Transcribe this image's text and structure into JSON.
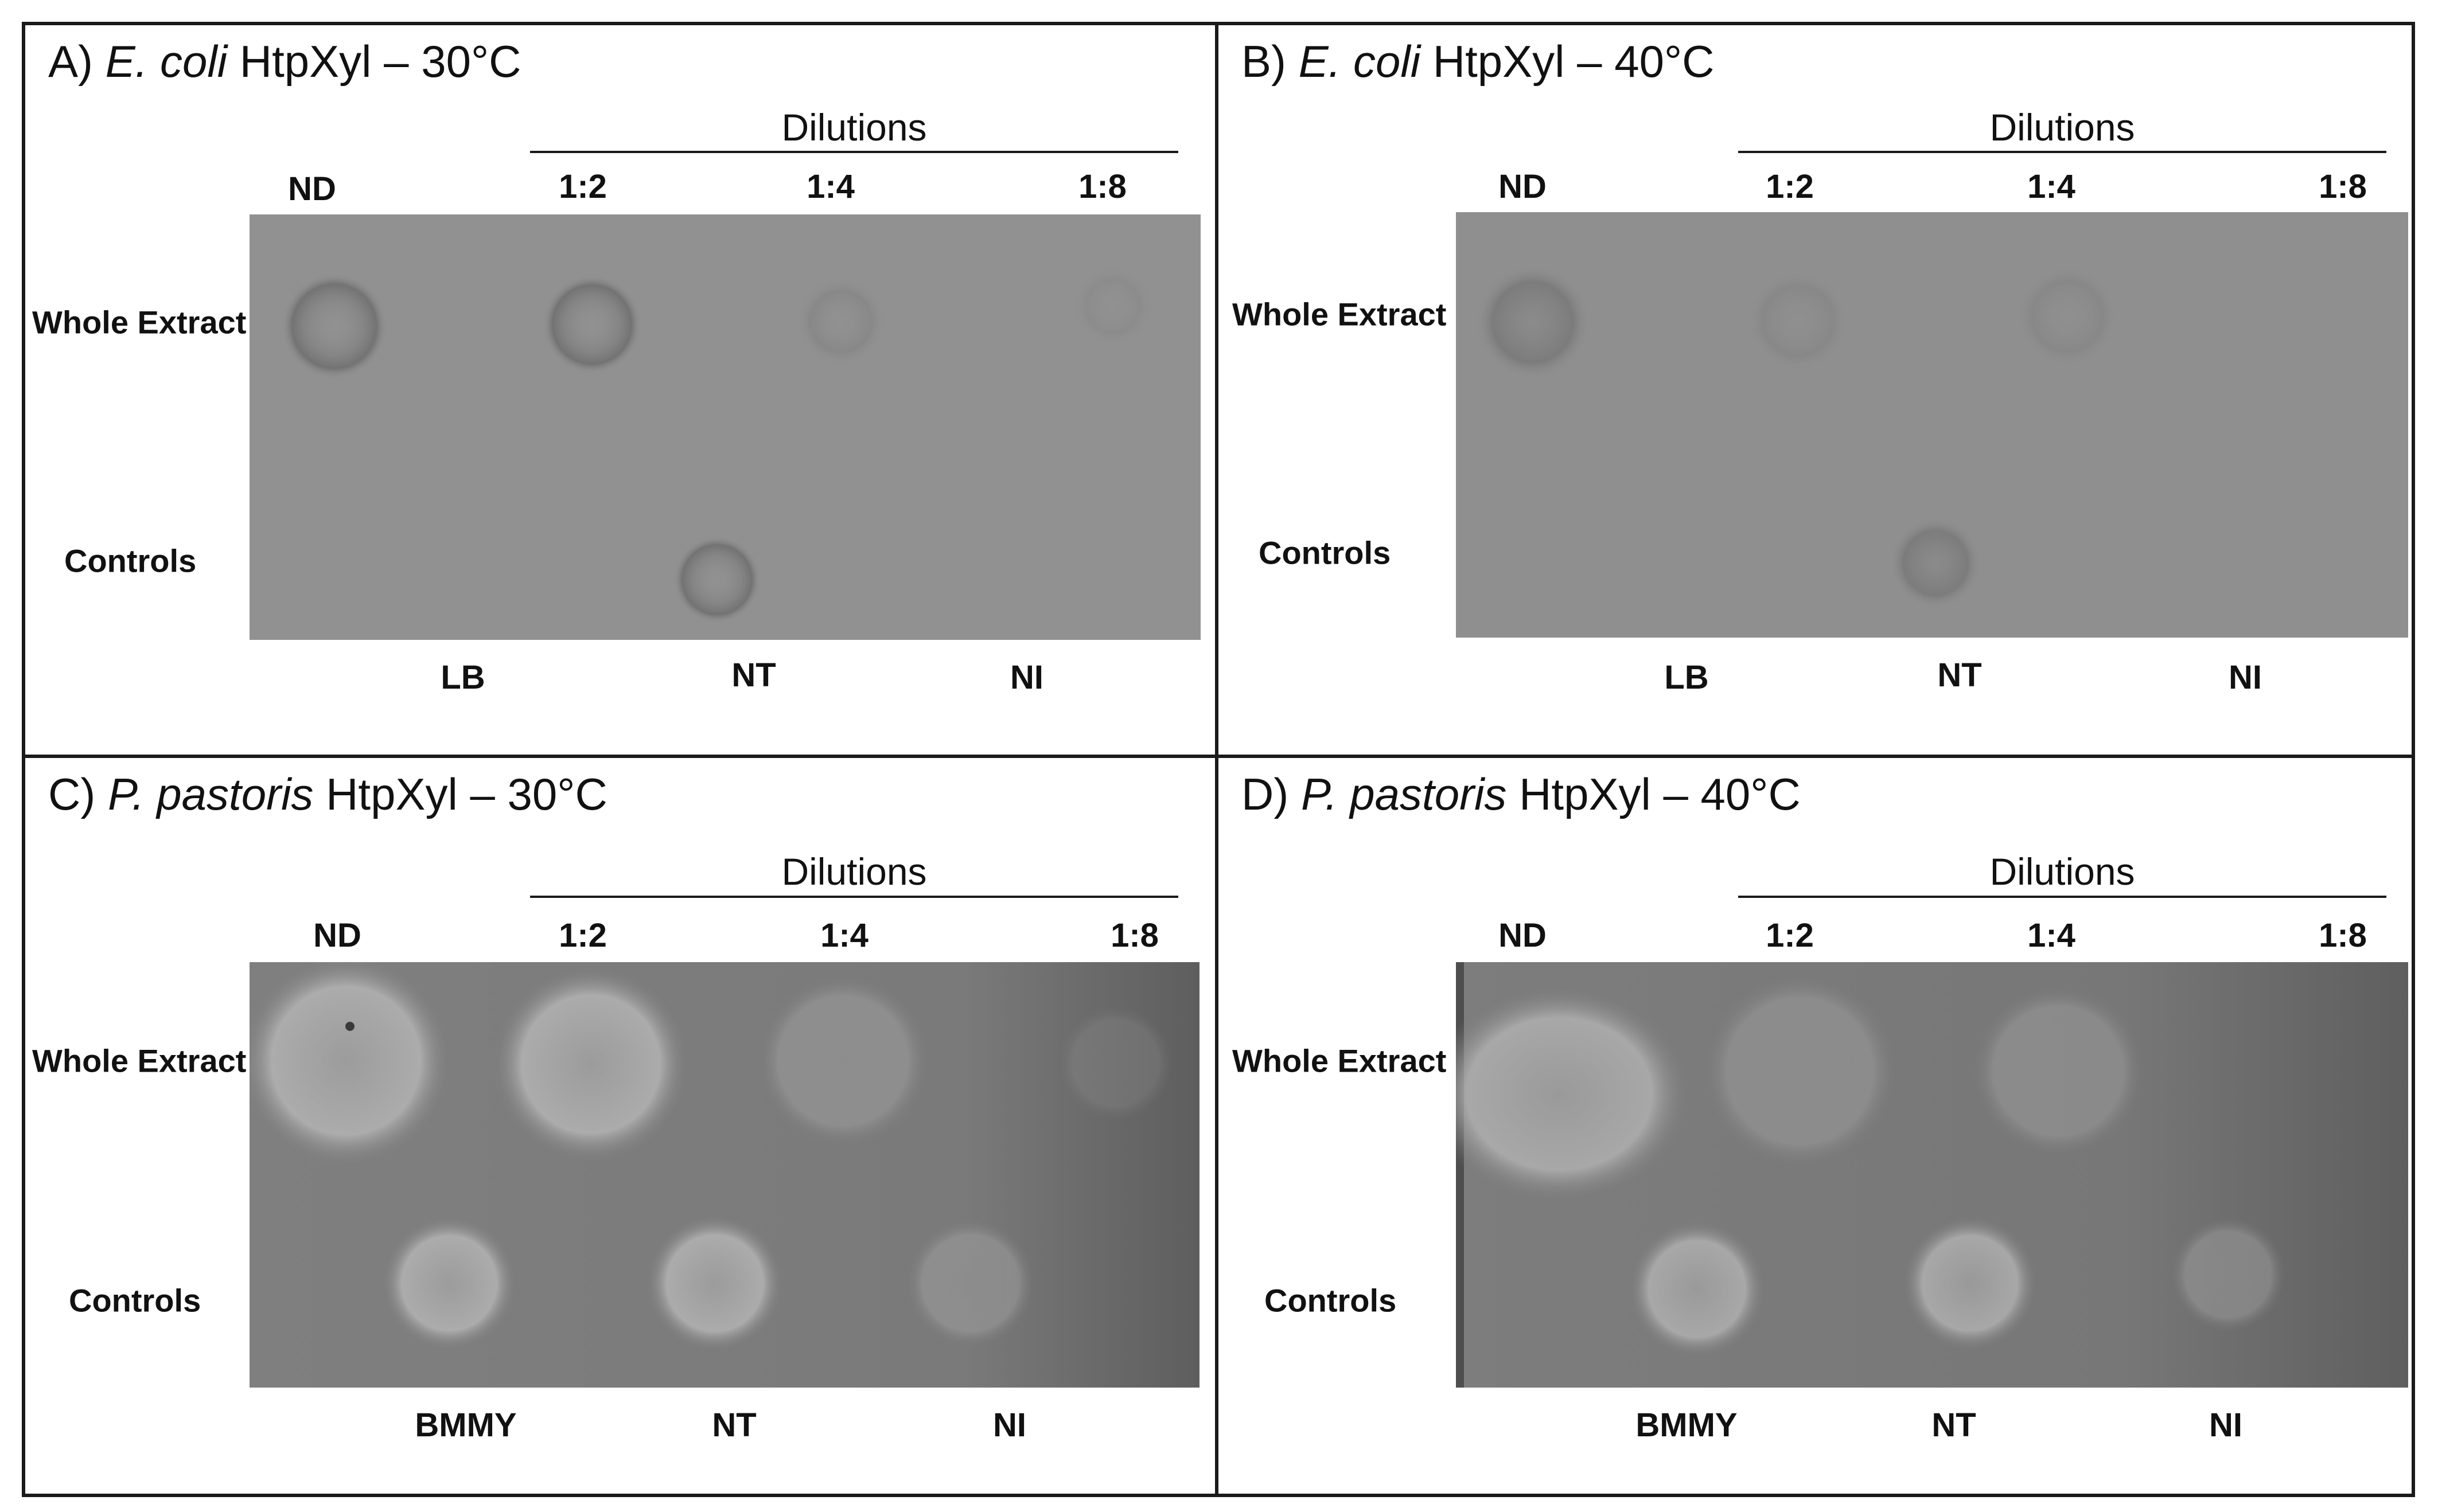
{
  "panels": [
    {
      "letter": "A)",
      "organism": "E. coli",
      "rest": "HtpXyl – 30°C",
      "dilutions_label": "Dilutions",
      "col_labels": [
        "ND",
        "1:2",
        "1:4",
        "1:8"
      ],
      "row_labels": [
        "Whole Extract",
        "Controls"
      ],
      "control_labels": [
        "LB",
        "NT",
        "NI"
      ]
    },
    {
      "letter": "B)",
      "organism": "E. coli",
      "rest": "HtpXyl – 40°C",
      "dilutions_label": "Dilutions",
      "col_labels": [
        "ND",
        "1:2",
        "1:4",
        "1:8"
      ],
      "row_labels": [
        "Whole Extract",
        "Controls"
      ],
      "control_labels": [
        "LB",
        "NT",
        "NI"
      ]
    },
    {
      "letter": "C)",
      "organism": "P. pastoris",
      "rest": "HtpXyl – 30°C",
      "dilutions_label": "Dilutions",
      "col_labels": [
        "ND",
        "1:2",
        "1:4",
        "1:8"
      ],
      "row_labels": [
        "Whole Extract",
        "Controls"
      ],
      "control_labels": [
        "BMMY",
        "NT",
        "NI"
      ]
    },
    {
      "letter": "D)",
      "organism": "P. pastoris",
      "rest": "HtpXyl – 40°C",
      "dilutions_label": "Dilutions",
      "col_labels": [
        "ND",
        "1:2",
        "1:4",
        "1:8"
      ],
      "row_labels": [
        "Whole Extract",
        "Controls"
      ],
      "control_labels": [
        "BMMY",
        "NT",
        "NI"
      ]
    }
  ],
  "colors": {
    "plate_ecoli": "#8f8f8f",
    "plate_pichia": "#7b7b7b",
    "halo_ecoli": "#6f6f6f",
    "halo_pichia": "#b4b4b4",
    "border": "#1a1a1a"
  }
}
